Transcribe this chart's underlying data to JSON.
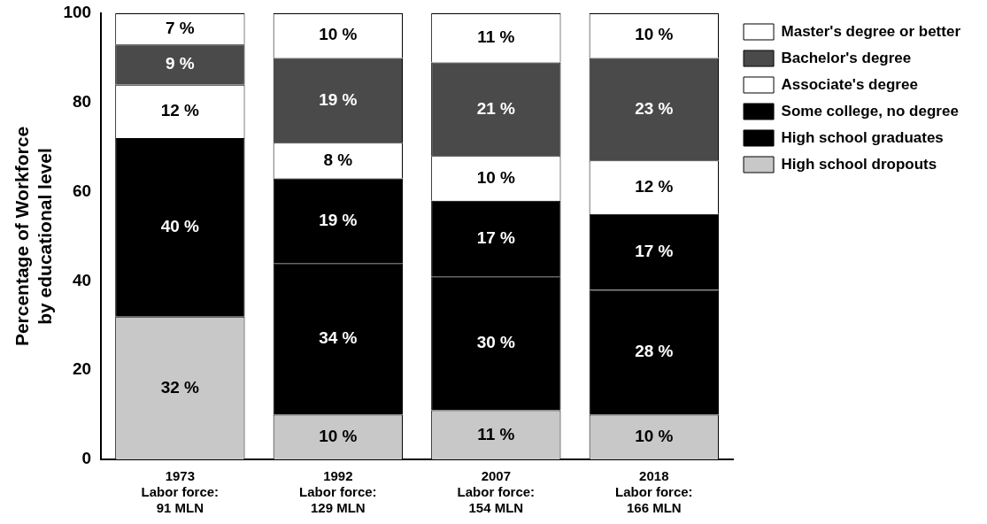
{
  "chart_data": {
    "type": "bar",
    "stacked": true,
    "ylabel": "Percentage of Workforce\nby educational level",
    "categories": [
      "1973\nLabor force:\n91 MLN",
      "1992\nLabor force:\n129 MLN",
      "2007\nLabor force:\n154 MLN",
      "2018\nLabor force:\n166 MLN"
    ],
    "ylim": [
      0,
      100
    ],
    "yticks": [
      0,
      20,
      40,
      60,
      80,
      100
    ],
    "grid": false,
    "legend": "right",
    "series": [
      {
        "name": "High school dropouts",
        "color": "#c8c8c8",
        "values": [
          32,
          10,
          11,
          10
        ],
        "value_labels": [
          "32 %",
          "10 %",
          "11 %",
          "10 %"
        ]
      },
      {
        "name": "High school graduates",
        "color": "#000000",
        "values": [
          40,
          34,
          30,
          28
        ],
        "value_labels": [
          "40 %",
          "34 %",
          "30 %",
          "28 %"
        ]
      },
      {
        "name": "Some college, no degree",
        "color": "#000000",
        "values": [
          null,
          19,
          17,
          17
        ],
        "value_labels": [
          null,
          "19 %",
          "17 %",
          "17 %"
        ]
      },
      {
        "name": "Associate's degree",
        "color": "#ffffff",
        "values": [
          12,
          8,
          10,
          12
        ],
        "value_labels": [
          "12 %",
          "8 %",
          "10 %",
          "12 %"
        ]
      },
      {
        "name": "Bachelor's degree",
        "color": "#4a4a4a",
        "values": [
          9,
          19,
          21,
          23
        ],
        "value_labels": [
          "9 %",
          "19 %",
          "21 %",
          "23 %"
        ]
      },
      {
        "name": "Master's degree or better",
        "color": "#ffffff",
        "values": [
          7,
          10,
          11,
          10
        ],
        "value_labels": [
          "7 %",
          "10 %",
          "11 %",
          "10 %"
        ]
      }
    ]
  }
}
